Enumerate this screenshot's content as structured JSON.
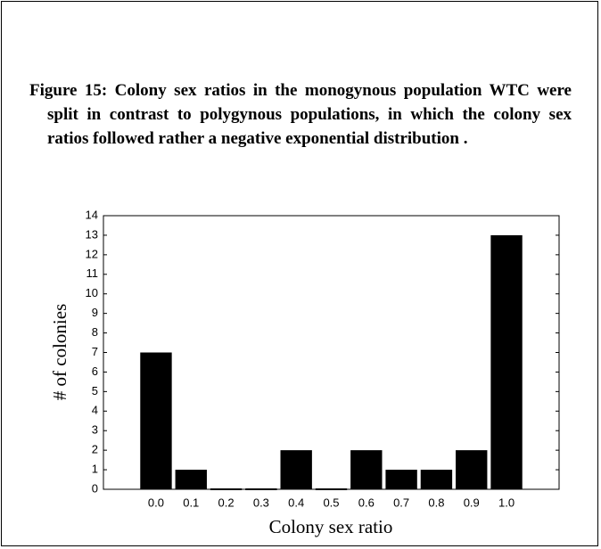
{
  "caption": "Figure 15: Colony sex ratios in the monogynous population WTC were split in contrast to polygynous populations, in which the colony sex ratios followed rather a negative exponential distribution .",
  "chart_data": {
    "type": "bar",
    "categories": [
      "0.0",
      "0.1",
      "0.2",
      "0.3",
      "0.4",
      "0.5",
      "0.6",
      "0.7",
      "0.8",
      "0.9",
      "1.0"
    ],
    "values": [
      7,
      1,
      0,
      0,
      2,
      0,
      2,
      1,
      1,
      2,
      13
    ],
    "color": "#000000",
    "xlabel": "Colony sex ratio",
    "ylabel": "# of colonies",
    "ylim": [
      0,
      14
    ],
    "yticks": [
      0,
      1,
      2,
      3,
      4,
      5,
      6,
      7,
      8,
      9,
      10,
      11,
      12,
      13,
      14
    ]
  }
}
